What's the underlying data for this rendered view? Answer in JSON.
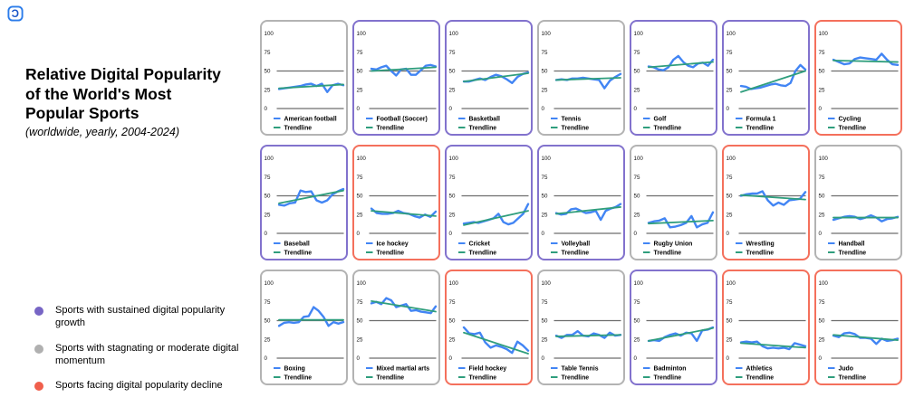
{
  "page": {
    "logo_glyph": "Ɔ",
    "logo_color": "#2b7cea",
    "title": "Relative Digital Popularity of the World's Most Popular Sports",
    "subtitle": "(worldwide, yearly, 2004-2024)"
  },
  "key_legend": {
    "items": [
      {
        "category": "growth",
        "color": "#7765c5",
        "label": "Sports with sustained digital popularity growth"
      },
      {
        "category": "stagnating",
        "color": "#b0b0b0",
        "label": "Sports with stagnating or moderate digital momentum"
      },
      {
        "category": "decline",
        "color": "#f05f4c",
        "label": "Sports facing digital popularity decline"
      }
    ]
  },
  "chart_style": {
    "line_color": "#4285f4",
    "trend_color": "#2f9e7d",
    "grid_color": "#6e6e6e",
    "tick_color": "#111111",
    "border_colors": {
      "growth": "#8272cd",
      "stagnating": "#b3b3b3",
      "decline": "#f4705c"
    },
    "ylim": [
      0,
      100
    ],
    "yticks": [
      100,
      75,
      50,
      25,
      0
    ],
    "gridlines_at": [
      50,
      0
    ],
    "x_span": "2004-2024",
    "trendline_label": "Trendline"
  },
  "chart_data": [
    {
      "type": "line",
      "title": "American football",
      "category": "stagnating",
      "ylim": [
        0,
        100
      ],
      "values": [
        26,
        27,
        28,
        29,
        30,
        32,
        33,
        30,
        33,
        22,
        31,
        33,
        31
      ],
      "trendline": [
        27,
        32
      ]
    },
    {
      "type": "line",
      "title": "Football (Soccer)",
      "category": "growth",
      "ylim": [
        0,
        100
      ],
      "values": [
        53,
        52,
        55,
        57,
        50,
        44,
        52,
        53,
        45,
        45,
        51,
        57,
        58,
        56
      ],
      "trendline": [
        50,
        55
      ]
    },
    {
      "type": "line",
      "title": "Basketball",
      "category": "growth",
      "ylim": [
        0,
        100
      ],
      "values": [
        36,
        36,
        38,
        40,
        38,
        42,
        45,
        43,
        39,
        34,
        42,
        46,
        48
      ],
      "trendline": [
        36,
        47
      ]
    },
    {
      "type": "line",
      "title": "Tennis",
      "category": "stagnating",
      "ylim": [
        0,
        100
      ],
      "values": [
        38,
        39,
        38,
        40,
        40,
        41,
        40,
        39,
        38,
        27,
        37,
        42,
        46
      ],
      "trendline": [
        38,
        41
      ]
    },
    {
      "type": "line",
      "title": "Golf",
      "category": "growth",
      "ylim": [
        0,
        100
      ],
      "values": [
        56,
        55,
        52,
        51,
        55,
        65,
        70,
        62,
        57,
        55,
        60,
        61,
        57,
        65
      ],
      "trendline": [
        55,
        62
      ]
    },
    {
      "type": "line",
      "title": "Formula 1",
      "category": "growth",
      "ylim": [
        0,
        100
      ],
      "values": [
        30,
        29,
        26,
        27,
        28,
        30,
        32,
        33,
        31,
        30,
        34,
        50,
        58,
        52
      ],
      "trendline": [
        22,
        50
      ]
    },
    {
      "type": "line",
      "title": "Cycling",
      "category": "decline",
      "ylim": [
        0,
        100
      ],
      "values": [
        65,
        62,
        59,
        60,
        66,
        68,
        67,
        66,
        65,
        73,
        65,
        59,
        58
      ],
      "trendline": [
        64,
        62
      ]
    },
    {
      "type": "line",
      "title": "Baseball",
      "category": "growth",
      "ylim": [
        0,
        100
      ],
      "values": [
        38,
        37,
        40,
        41,
        57,
        55,
        56,
        44,
        41,
        44,
        52,
        56,
        59
      ],
      "trendline": [
        40,
        57
      ]
    },
    {
      "type": "line",
      "title": "Ice hockey",
      "category": "decline",
      "ylim": [
        0,
        100
      ],
      "values": [
        33,
        27,
        26,
        26,
        27,
        30,
        27,
        26,
        23,
        21,
        25,
        22,
        29
      ],
      "trendline": [
        30,
        23
      ]
    },
    {
      "type": "line",
      "title": "Cricket",
      "category": "growth",
      "ylim": [
        0,
        100
      ],
      "values": [
        13,
        14,
        15,
        14,
        16,
        18,
        20,
        26,
        15,
        12,
        14,
        20,
        26,
        39
      ],
      "trendline": [
        11,
        30
      ]
    },
    {
      "type": "line",
      "title": "Volleyball",
      "category": "growth",
      "ylim": [
        0,
        100
      ],
      "values": [
        27,
        25,
        26,
        32,
        33,
        30,
        27,
        28,
        30,
        18,
        30,
        33,
        35,
        39
      ],
      "trendline": [
        26,
        35
      ]
    },
    {
      "type": "line",
      "title": "Rugby Union",
      "category": "stagnating",
      "ylim": [
        0,
        100
      ],
      "values": [
        14,
        16,
        17,
        20,
        8,
        9,
        11,
        14,
        23,
        8,
        12,
        14,
        28
      ],
      "trendline": [
        13,
        17
      ]
    },
    {
      "type": "line",
      "title": "Wrestling",
      "category": "decline",
      "ylim": [
        0,
        100
      ],
      "values": [
        50,
        52,
        53,
        53,
        56,
        44,
        37,
        41,
        38,
        44,
        45,
        46,
        55
      ],
      "trendline": [
        51,
        45
      ]
    },
    {
      "type": "line",
      "title": "Handball",
      "category": "stagnating",
      "ylim": [
        0,
        100
      ],
      "values": [
        18,
        20,
        22,
        23,
        22,
        19,
        21,
        24,
        21,
        16,
        19,
        20,
        22
      ],
      "trendline": [
        21,
        21
      ]
    },
    {
      "type": "line",
      "title": "Boxing",
      "category": "stagnating",
      "ylim": [
        0,
        100
      ],
      "values": [
        43,
        47,
        48,
        47,
        48,
        55,
        56,
        68,
        63,
        55,
        43,
        48,
        46,
        48
      ],
      "trendline": [
        51,
        51
      ]
    },
    {
      "type": "line",
      "title": "Mixed martial arts",
      "category": "stagnating",
      "ylim": [
        0,
        100
      ],
      "values": [
        73,
        75,
        72,
        80,
        77,
        68,
        70,
        72,
        63,
        64,
        62,
        61,
        60,
        69
      ],
      "trendline": [
        76,
        62
      ]
    },
    {
      "type": "line",
      "title": "Field hockey",
      "category": "decline",
      "ylim": [
        0,
        100
      ],
      "values": [
        41,
        33,
        32,
        34,
        21,
        14,
        17,
        15,
        12,
        7,
        22,
        17,
        10
      ],
      "trendline": [
        34,
        6
      ]
    },
    {
      "type": "line",
      "title": "Table Tennis",
      "category": "stagnating",
      "ylim": [
        0,
        100
      ],
      "values": [
        30,
        27,
        31,
        31,
        36,
        30,
        29,
        33,
        31,
        27,
        34,
        30,
        31
      ],
      "trendline": [
        29,
        31
      ]
    },
    {
      "type": "line",
      "title": "Badminton",
      "category": "growth",
      "ylim": [
        0,
        100
      ],
      "values": [
        23,
        24,
        23,
        28,
        31,
        33,
        30,
        34,
        33,
        23,
        37,
        38,
        41
      ],
      "trendline": [
        23,
        40
      ]
    },
    {
      "type": "line",
      "title": "Athletics",
      "category": "decline",
      "ylim": [
        0,
        100
      ],
      "values": [
        21,
        22,
        21,
        22,
        16,
        13,
        14,
        13,
        14,
        12,
        20,
        18,
        16
      ],
      "trendline": [
        20,
        14
      ]
    },
    {
      "type": "line",
      "title": "Judo",
      "category": "decline",
      "ylim": [
        0,
        100
      ],
      "values": [
        30,
        28,
        33,
        34,
        32,
        27,
        27,
        26,
        19,
        26,
        23,
        24,
        26
      ],
      "trendline": [
        31,
        24
      ]
    }
  ]
}
